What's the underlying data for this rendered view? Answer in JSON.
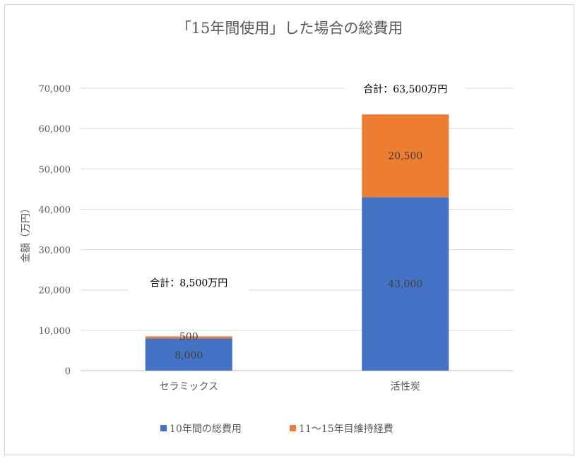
{
  "chart_data": {
    "type": "bar",
    "stacked": true,
    "title": "「15年間使用」した場合の総費用",
    "ylabel": "金額（万円）",
    "xlabel": "",
    "categories": [
      "セラミックス",
      "活性炭"
    ],
    "series": [
      {
        "name": "10年間の総費用",
        "values": [
          8000,
          43000
        ],
        "labels": [
          "8,000",
          "43,000"
        ],
        "color": "#4472C4"
      },
      {
        "name": "11〜15年目維持経費",
        "values": [
          500,
          20500
        ],
        "labels": [
          "500",
          "20,500"
        ],
        "color": "#ED7D31"
      }
    ],
    "totals": [
      "合計：8,500万円",
      "合計：63,500万円"
    ],
    "ylim": [
      0,
      70000
    ],
    "yticks": [
      0,
      10000,
      20000,
      30000,
      40000,
      50000,
      60000,
      70000
    ],
    "ytick_labels": [
      "0",
      "10,000",
      "20,000",
      "30,000",
      "40,000",
      "50,000",
      "60,000",
      "70,000"
    ],
    "grid": true,
    "legend_position": "bottom"
  }
}
